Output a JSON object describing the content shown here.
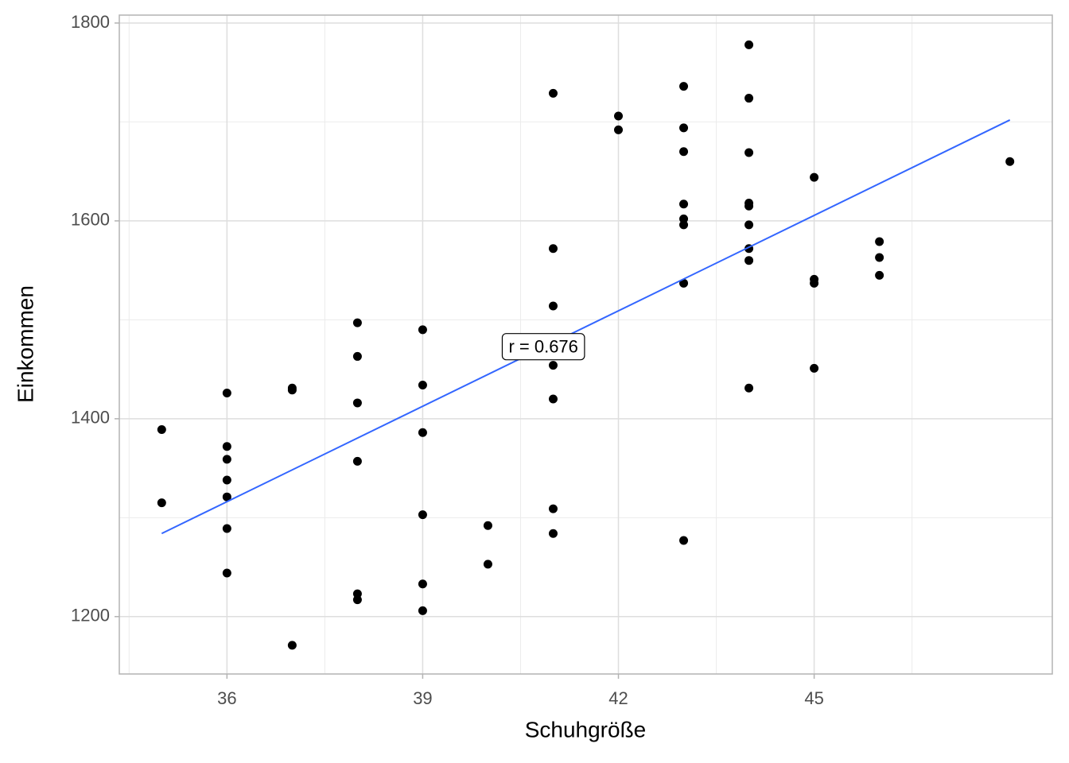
{
  "chart_data": {
    "type": "scatter",
    "x_label": "Schuhgröße",
    "y_label": "Einkommen",
    "xlim": [
      34.35,
      48.65
    ],
    "ylim": [
      1142,
      1808
    ],
    "xticks": [
      36,
      39,
      42,
      45
    ],
    "yticks": [
      1200,
      1400,
      1600,
      1800
    ],
    "x_minor_ticks": [
      34.5,
      37.5,
      40.5,
      43.5,
      46.5
    ],
    "y_minor_ticks": [
      1300,
      1500,
      1700
    ],
    "grid": true,
    "series": [
      {
        "color": "#000000",
        "x": [
          35,
          35,
          36,
          36,
          36,
          36,
          36,
          36,
          36,
          37,
          37,
          37,
          38,
          38,
          38,
          38,
          38,
          38,
          39,
          39,
          39,
          39,
          39,
          39,
          40,
          40,
          41,
          41,
          41,
          41,
          41,
          41,
          41,
          42,
          42,
          43,
          43,
          43,
          43,
          43,
          43,
          43,
          43,
          44,
          44,
          44,
          44,
          44,
          44,
          44,
          44,
          44,
          45,
          45,
          45,
          45,
          46,
          46,
          46,
          48
        ],
        "values": [
          1389,
          1315,
          1426,
          1372,
          1359,
          1338,
          1321,
          1289,
          1244,
          1431,
          1429,
          1171,
          1497,
          1463,
          1416,
          1357,
          1223,
          1217,
          1490,
          1434,
          1386,
          1303,
          1233,
          1206,
          1292,
          1253,
          1729,
          1572,
          1514,
          1454,
          1420,
          1309,
          1284,
          1706,
          1692,
          1736,
          1694,
          1670,
          1617,
          1602,
          1596,
          1537,
          1277,
          1778,
          1724,
          1669,
          1618,
          1615,
          1596,
          1572,
          1560,
          1431,
          1644,
          1541,
          1537,
          1451,
          1579,
          1563,
          1545,
          1660
        ]
      }
    ],
    "fit": {
      "color": "#3366ff",
      "x": [
        35,
        48
      ],
      "y": [
        1284,
        1702
      ]
    },
    "annotation": {
      "text": "r = 0.676",
      "x": 40.85,
      "y": 1471.5
    }
  }
}
